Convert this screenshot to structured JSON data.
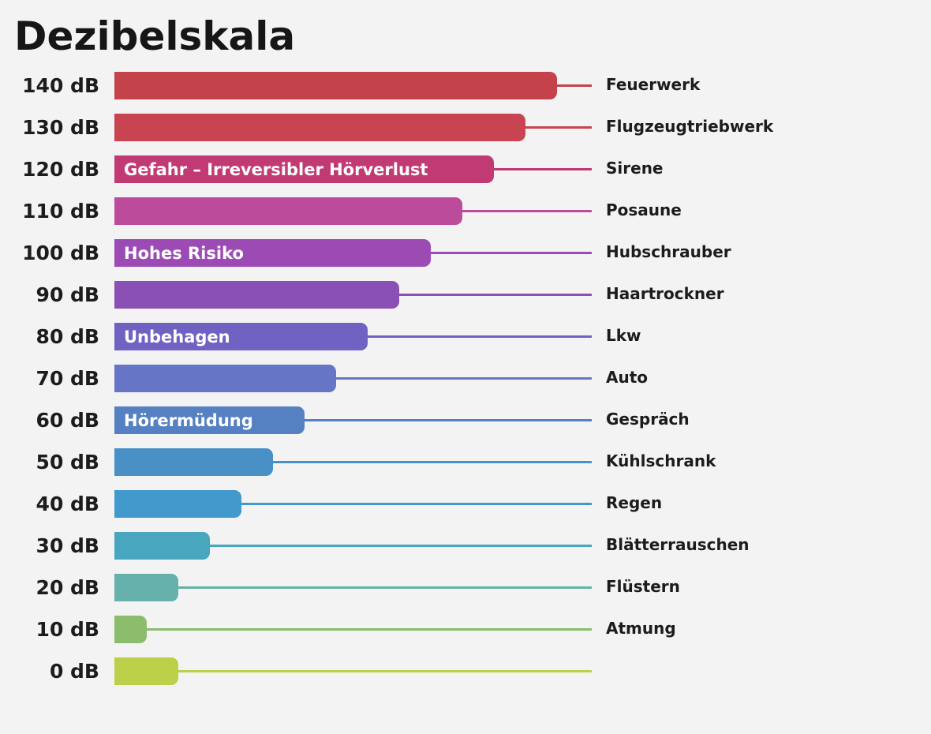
{
  "chart_data": {
    "type": "bar",
    "orientation": "horizontal",
    "title": "Dezibelskala",
    "unit": "dB",
    "xlim": [
      0,
      140
    ],
    "grid": false,
    "rows": [
      {
        "label": "140 dB",
        "value": 140,
        "source": "Feuerwerk",
        "zone": "",
        "color": "#c4424a"
      },
      {
        "label": "130 dB",
        "value": 130,
        "source": "Flugzeugtriebwerk",
        "zone": "",
        "color": "#c94451"
      },
      {
        "label": "120 dB",
        "value": 120,
        "source": "Sirene",
        "zone": "Gefahr – Irreversibler Hörverlust",
        "color": "#c23a74"
      },
      {
        "label": "110 dB",
        "value": 110,
        "source": "Posaune",
        "zone": "",
        "color": "#bd4b9c"
      },
      {
        "label": "100 dB",
        "value": 100,
        "source": "Hubschrauber",
        "zone": "Hohes Risiko",
        "color": "#9c4bb5"
      },
      {
        "label": "90 dB",
        "value": 90,
        "source": "Haartrockner",
        "zone": "",
        "color": "#8a50b6"
      },
      {
        "label": "80 dB",
        "value": 80,
        "source": "Lkw",
        "zone": "Unbehagen",
        "color": "#7062c2"
      },
      {
        "label": "70 dB",
        "value": 70,
        "source": "Auto",
        "zone": "",
        "color": "#6675c6"
      },
      {
        "label": "60 dB",
        "value": 60,
        "source": "Gespräch",
        "zone": "Hörermüdung",
        "color": "#5580c2"
      },
      {
        "label": "50 dB",
        "value": 50,
        "source": "Kühlschrank",
        "zone": "",
        "color": "#4890c6"
      },
      {
        "label": "40 dB",
        "value": 40,
        "source": "Regen",
        "zone": "",
        "color": "#4299cc"
      },
      {
        "label": "30 dB",
        "value": 30,
        "source": "Blätterrauschen",
        "zone": "",
        "color": "#48a6bf"
      },
      {
        "label": "20 dB",
        "value": 20,
        "source": "Flüstern",
        "zone": "",
        "color": "#66b1ac"
      },
      {
        "label": "10 dB",
        "value": 10,
        "source": "Atmung",
        "zone": "",
        "color": "#8bbd6c"
      },
      {
        "label": "0 dB",
        "value": 0,
        "source": "",
        "zone": "",
        "color": "#bcd04a"
      }
    ]
  }
}
